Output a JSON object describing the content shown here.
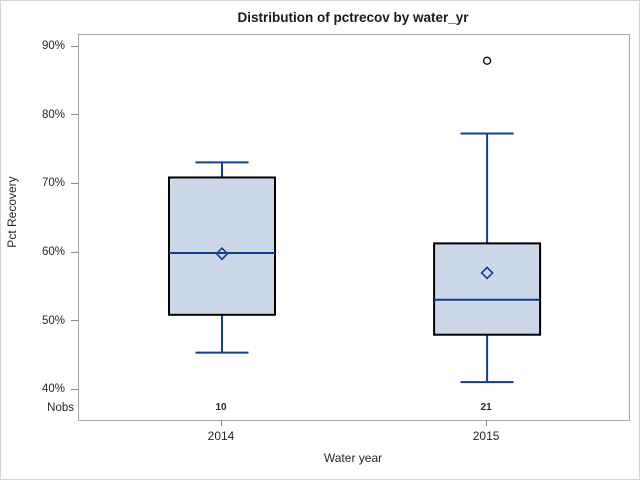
{
  "colors": {
    "box_fill": "#ccd7e7",
    "box_border": "#000000",
    "box_line": "#0e3d9a",
    "outlier_stroke": "#000000",
    "frame": "#a6a6a6",
    "tick": "#8c8c8c"
  },
  "chart_data": {
    "type": "box",
    "title": "Distribution of pctrecov by water_yr",
    "xlabel": "Water year",
    "ylabel": "Pct Recovery",
    "categories": [
      "2014",
      "2015"
    ],
    "yticks": [
      90,
      80,
      70,
      60,
      50,
      40
    ],
    "ytick_suffix": "%",
    "ylim": [
      35.7,
      91.7
    ],
    "grid": false,
    "legend": "none",
    "nobs_label": "Nobs",
    "series": [
      {
        "category": "2014",
        "nobs": "10",
        "min": 45.5,
        "q1": 51,
        "median": 60,
        "q3": 71,
        "max": 73.2,
        "mean": 59.9,
        "outliers": []
      },
      {
        "category": "2015",
        "nobs": "21",
        "min": 41.2,
        "q1": 48.1,
        "median": 53.2,
        "q3": 61.4,
        "max": 77.4,
        "mean": 57.1,
        "outliers": [
          88
        ]
      }
    ]
  }
}
